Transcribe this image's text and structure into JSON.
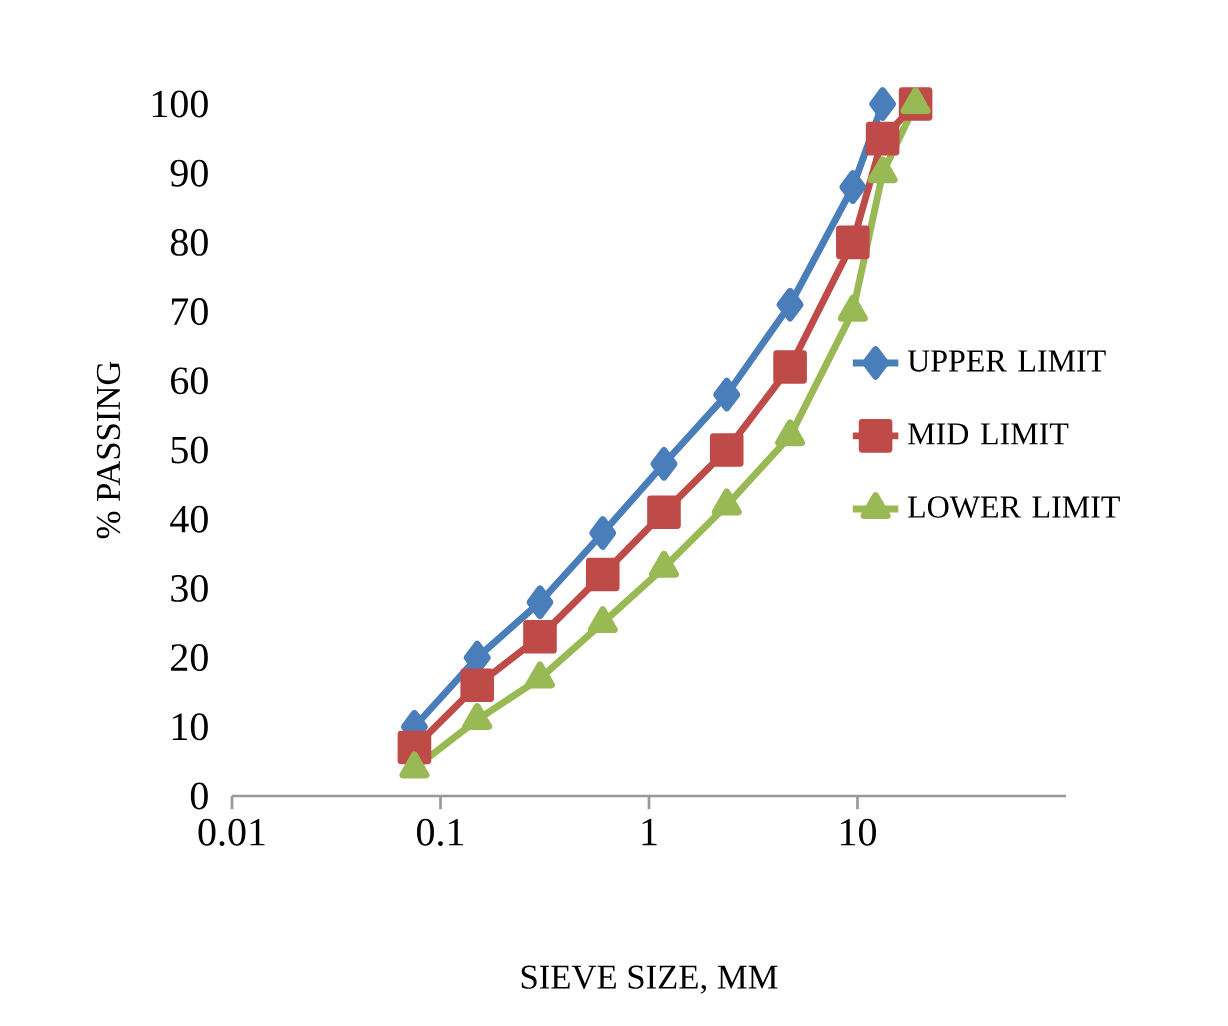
{
  "chart_data": {
    "type": "line",
    "xlabel": "SIEVE SIZE, MM",
    "ylabel": "% PASSING",
    "log": "x",
    "xlim": [
      0.01,
      100
    ],
    "xticks": [
      0.01,
      0.1,
      1,
      10
    ],
    "ylim": [
      0,
      100
    ],
    "yticks": [
      0,
      10,
      20,
      30,
      40,
      50,
      60,
      70,
      80,
      90,
      100
    ],
    "x": [
      0.075,
      0.15,
      0.3,
      0.6,
      1.18,
      2.36,
      4.75,
      9.5,
      13.2,
      19
    ],
    "grid": false,
    "legend": "right",
    "line_style": "solid",
    "series": [
      {
        "name": "UPPER LIMIT",
        "color": "#4a7ebb",
        "marker": "diamond",
        "values": [
          10,
          20,
          28,
          38,
          48,
          58,
          71,
          88,
          100,
          null
        ]
      },
      {
        "name": "MID LIMIT",
        "color": "#be4b48",
        "marker": "square",
        "values": [
          7,
          16,
          23,
          32,
          41,
          50,
          62,
          80,
          95,
          100
        ]
      },
      {
        "name": "LOWER LIMIT",
        "color": "#98b954",
        "marker": "triangle",
        "values": [
          4,
          11,
          17,
          25,
          33,
          42,
          52,
          70,
          90,
          100
        ]
      }
    ]
  }
}
